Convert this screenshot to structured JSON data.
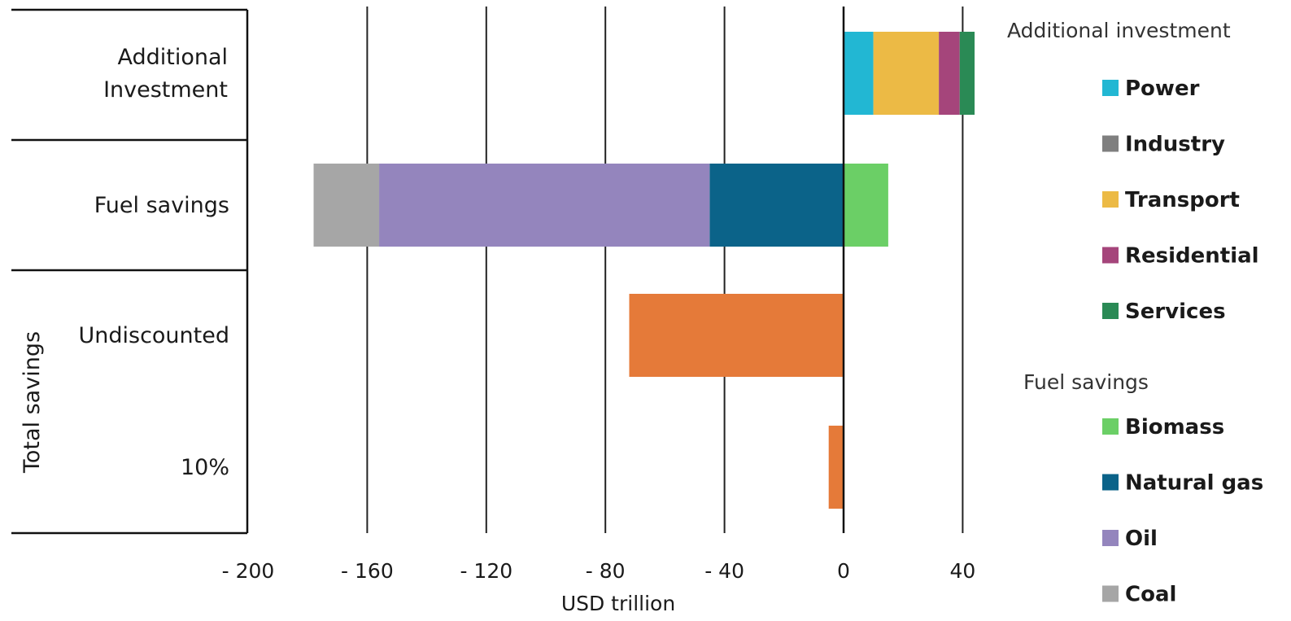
{
  "chart_data": {
    "type": "bar",
    "orientation": "horizontal",
    "stacked": true,
    "xlabel": "USD trillion",
    "xlim": [
      -200,
      45
    ],
    "x_ticks": [
      -200,
      -160,
      -120,
      -80,
      -40,
      0,
      40
    ],
    "x_tick_labels": [
      "- 200",
      "- 160",
      "- 120",
      "- 80",
      "- 40",
      "0",
      "40"
    ],
    "grid": "vertical",
    "group_label": "Total savings",
    "categories": [
      "Additional Investment",
      "Fuel savings",
      "Undiscounted",
      "10%"
    ],
    "category_label_lines": [
      [
        "Additional",
        "Investment"
      ],
      [
        "Fuel savings"
      ],
      [
        "Undiscounted"
      ],
      [
        "10%"
      ]
    ],
    "series": [
      {
        "name": "Power",
        "group": "Additional investment",
        "color": "#22b7d3",
        "values": [
          10,
          0,
          0,
          0
        ]
      },
      {
        "name": "Industry",
        "group": "Additional investment",
        "color": "#7f7f7f",
        "values": [
          0,
          0,
          0,
          0
        ]
      },
      {
        "name": "Transport",
        "group": "Additional investment",
        "color": "#ecba45",
        "values": [
          22,
          0,
          0,
          0
        ]
      },
      {
        "name": "Residential",
        "group": "Additional investment",
        "color": "#a5457b",
        "values": [
          7,
          0,
          0,
          0
        ]
      },
      {
        "name": "Services",
        "group": "Additional investment",
        "color": "#2a8a55",
        "values": [
          5,
          0,
          0,
          0
        ]
      },
      {
        "name": "Biomass",
        "group": "Fuel savings",
        "color": "#6bcf66",
        "values": [
          0,
          15,
          0,
          0
        ]
      },
      {
        "name": "Natural gas",
        "group": "Fuel savings",
        "color": "#0b6389",
        "values": [
          0,
          -45,
          0,
          0
        ]
      },
      {
        "name": "Oil",
        "group": "Fuel savings",
        "color": "#9485bd",
        "values": [
          0,
          -111,
          0,
          0
        ]
      },
      {
        "name": "Coal",
        "group": "Fuel savings",
        "color": "#a6a6a6",
        "values": [
          0,
          -22,
          0,
          0
        ]
      },
      {
        "name": "",
        "group": "Total savings",
        "color": "#e57a39",
        "values": [
          0,
          0,
          -72,
          -5
        ]
      }
    ],
    "legend": {
      "placement": "right",
      "groups": [
        {
          "title": "Additional investment",
          "items": [
            "Power",
            "Industry",
            "Transport",
            "Residential",
            "Services"
          ]
        },
        {
          "title": "Fuel savings",
          "items": [
            "Biomass",
            "Natural gas",
            "Oil",
            "Coal"
          ]
        }
      ]
    }
  }
}
